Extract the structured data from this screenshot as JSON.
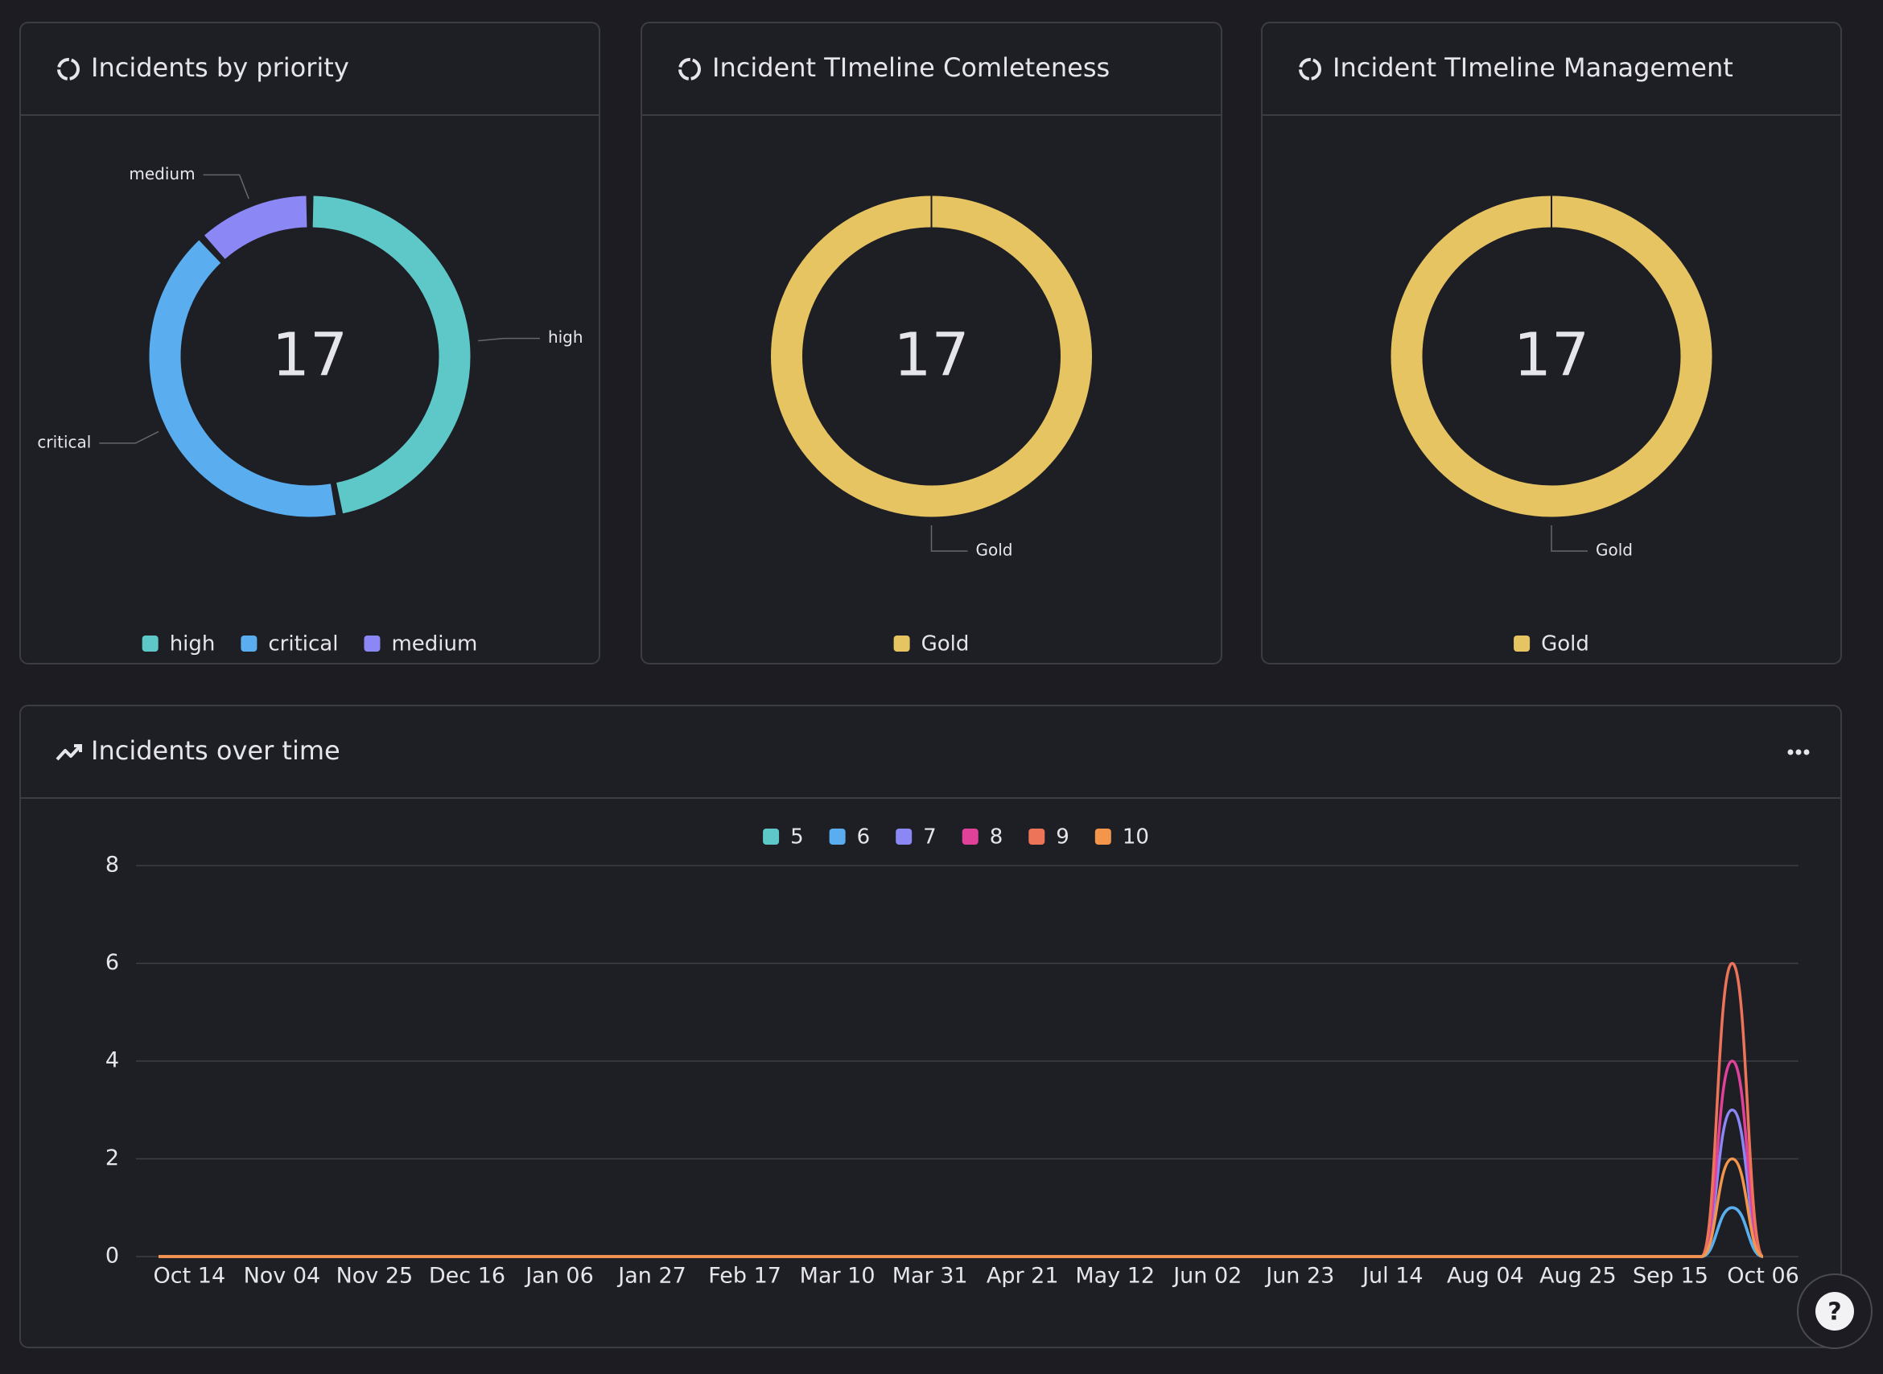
{
  "chart_data": [
    {
      "type": "pie",
      "title": "Incidents by priority",
      "categories": [
        "high",
        "critical",
        "medium"
      ],
      "values": [
        8,
        7,
        2
      ],
      "colors": [
        "#5ec8c8",
        "#5aaeef",
        "#8b87f5"
      ],
      "total": 17
    },
    {
      "type": "pie",
      "title": "Incident TImeline Comleteness",
      "categories": [
        "Gold"
      ],
      "values": [
        17
      ],
      "colors": [
        "#e6c462"
      ],
      "total": 17
    },
    {
      "type": "pie",
      "title": "Incident TImeline Management",
      "categories": [
        "Gold"
      ],
      "values": [
        17
      ],
      "colors": [
        "#e6c462"
      ],
      "total": 17
    },
    {
      "type": "line",
      "title": "Incidents over time",
      "categories": [
        null,
        "Oct 14",
        null,
        null,
        "Nov 04",
        null,
        null,
        "Nov 25",
        null,
        null,
        "Dec 16",
        null,
        null,
        "Jan 06",
        null,
        null,
        "Jan 27",
        null,
        null,
        "Feb 17",
        null,
        null,
        "Mar 10",
        null,
        null,
        "Mar 31",
        null,
        null,
        "Apr 21",
        null,
        null,
        "May 12",
        null,
        null,
        "Jun 02",
        null,
        null,
        "Jun 23",
        null,
        null,
        "Jul 14",
        null,
        null,
        "Aug 04",
        null,
        null,
        "Aug 25",
        null,
        null,
        "Sep 15",
        null,
        null,
        "Oct 06"
      ],
      "series": [
        {
          "name": "5",
          "color": "#5ec8c8",
          "values": [
            0,
            0,
            0,
            0,
            0,
            0,
            0,
            0,
            0,
            0,
            0,
            0,
            0,
            0,
            0,
            0,
            0,
            0,
            0,
            0,
            0,
            0,
            0,
            0,
            0,
            0,
            0,
            0,
            0,
            0,
            0,
            0,
            0,
            0,
            0,
            0,
            0,
            0,
            0,
            0,
            0,
            0,
            0,
            0,
            0,
            0,
            0,
            0,
            0,
            0,
            0,
            1,
            0
          ]
        },
        {
          "name": "6",
          "color": "#5aaeef",
          "values": [
            0,
            0,
            0,
            0,
            0,
            0,
            0,
            0,
            0,
            0,
            0,
            0,
            0,
            0,
            0,
            0,
            0,
            0,
            0,
            0,
            0,
            0,
            0,
            0,
            0,
            0,
            0,
            0,
            0,
            0,
            0,
            0,
            0,
            0,
            0,
            0,
            0,
            0,
            0,
            0,
            0,
            0,
            0,
            0,
            0,
            0,
            0,
            0,
            0,
            0,
            0,
            1,
            0
          ]
        },
        {
          "name": "7",
          "color": "#8b87f5",
          "values": [
            0,
            0,
            0,
            0,
            0,
            0,
            0,
            0,
            0,
            0,
            0,
            0,
            0,
            0,
            0,
            0,
            0,
            0,
            0,
            0,
            0,
            0,
            0,
            0,
            0,
            0,
            0,
            0,
            0,
            0,
            0,
            0,
            0,
            0,
            0,
            0,
            0,
            0,
            0,
            0,
            0,
            0,
            0,
            0,
            0,
            0,
            0,
            0,
            0,
            0,
            0,
            3,
            0
          ]
        },
        {
          "name": "8",
          "color": "#e0429a",
          "values": [
            0,
            0,
            0,
            0,
            0,
            0,
            0,
            0,
            0,
            0,
            0,
            0,
            0,
            0,
            0,
            0,
            0,
            0,
            0,
            0,
            0,
            0,
            0,
            0,
            0,
            0,
            0,
            0,
            0,
            0,
            0,
            0,
            0,
            0,
            0,
            0,
            0,
            0,
            0,
            0,
            0,
            0,
            0,
            0,
            0,
            0,
            0,
            0,
            0,
            0,
            0,
            4,
            0
          ]
        },
        {
          "name": "9",
          "color": "#ee7459",
          "values": [
            0,
            0,
            0,
            0,
            0,
            0,
            0,
            0,
            0,
            0,
            0,
            0,
            0,
            0,
            0,
            0,
            0,
            0,
            0,
            0,
            0,
            0,
            0,
            0,
            0,
            0,
            0,
            0,
            0,
            0,
            0,
            0,
            0,
            0,
            0,
            0,
            0,
            0,
            0,
            0,
            0,
            0,
            0,
            0,
            0,
            0,
            0,
            0,
            0,
            0,
            0,
            6,
            0
          ]
        },
        {
          "name": "10",
          "color": "#f3954a",
          "values": [
            0,
            0,
            0,
            0,
            0,
            0,
            0,
            0,
            0,
            0,
            0,
            0,
            0,
            0,
            0,
            0,
            0,
            0,
            0,
            0,
            0,
            0,
            0,
            0,
            0,
            0,
            0,
            0,
            0,
            0,
            0,
            0,
            0,
            0,
            0,
            0,
            0,
            0,
            0,
            0,
            0,
            0,
            0,
            0,
            0,
            0,
            0,
            0,
            0,
            0,
            0,
            2,
            0
          ]
        }
      ],
      "ylim": [
        0,
        8
      ],
      "yticks": [
        0,
        2,
        4,
        6,
        8
      ],
      "grid": true,
      "legend": "top"
    }
  ],
  "help_button": "?"
}
